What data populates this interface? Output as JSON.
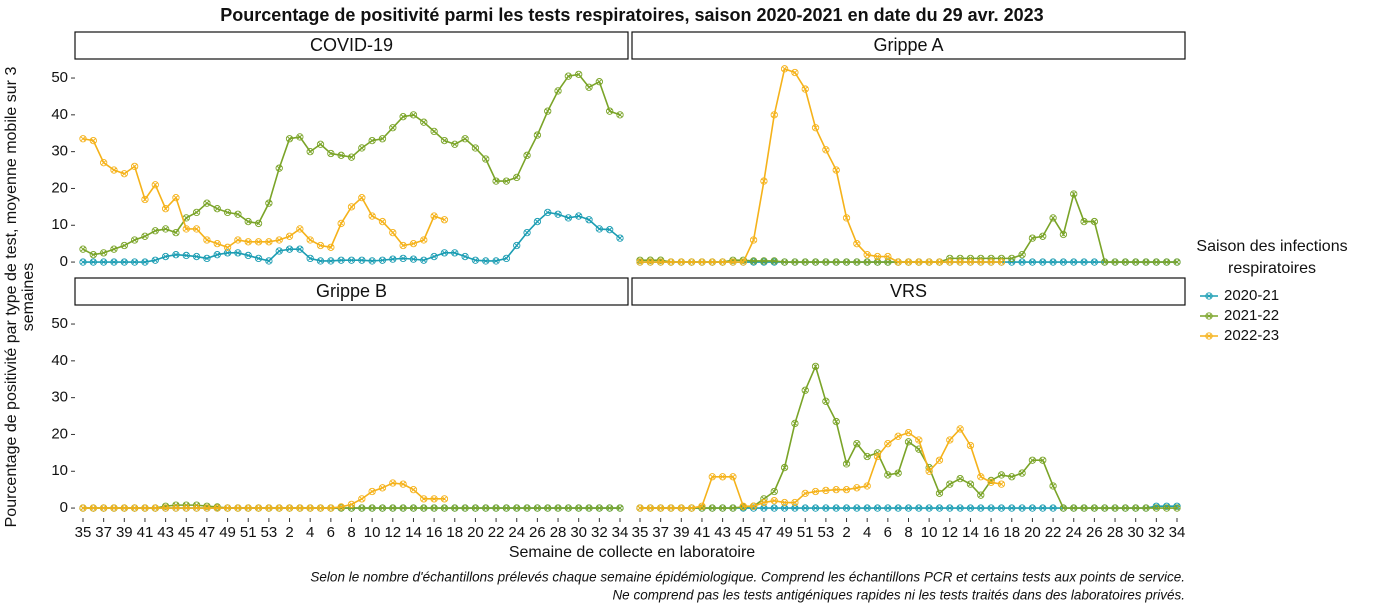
{
  "chart_data": {
    "type": "line",
    "title": "Pourcentage de positivité parmi les tests respiratoires, saison 2020-2021 en date du 29 avr. 2023",
    "x_label": "Semaine de collecte en laboratoire",
    "y_label": "Pourcentage de positivité par type de test, moyenne mobile sur 3 semaines",
    "footnote": [
      "Selon le nombre d'échantillons prélevés chaque semaine épidémiologique. Comprend les échantillons PCR et certains tests aux points de service.",
      "Ne comprend pas les tests antigéniques rapides ni les tests traités dans des laboratoires privés."
    ],
    "legend_title": "Saison des infections respiratoires",
    "legend_position": "right",
    "categories": [
      35,
      null,
      37,
      null,
      39,
      null,
      41,
      null,
      43,
      null,
      45,
      null,
      47,
      null,
      49,
      null,
      51,
      null,
      53,
      null,
      2,
      null,
      4,
      null,
      6,
      null,
      8,
      null,
      10,
      null,
      12,
      null,
      14,
      null,
      16,
      null,
      18,
      null,
      20,
      null,
      22,
      null,
      24,
      null,
      26,
      null,
      28,
      null,
      30,
      null,
      32,
      null,
      34
    ],
    "ylim": [
      -2.7,
      54.9
    ],
    "yticks": [
      0,
      10,
      20,
      30,
      40,
      50
    ],
    "series": [
      {
        "name": "2020-21",
        "color": "#1b9db3"
      },
      {
        "name": "2021-22",
        "color": "#7aa428"
      },
      {
        "name": "2022-23",
        "color": "#f5b21a"
      }
    ],
    "panels": [
      {
        "title": "COVID-19",
        "values": [
          [
            0,
            0,
            0,
            0,
            0,
            0,
            0,
            0.5,
            1.5,
            2,
            1.8,
            1.5,
            1,
            2,
            2.5,
            2.5,
            1.8,
            1,
            0.3,
            3,
            3.5,
            3.5,
            1,
            0.3,
            0.3,
            0.5,
            0.5,
            0.5,
            0.3,
            0.5,
            0.8,
            1,
            0.8,
            0.5,
            1.5,
            2.5,
            2.5,
            1.5,
            0.5,
            0.3,
            0.3,
            1,
            4.5,
            8,
            11,
            13.5,
            13,
            12,
            12.5,
            11.5,
            9,
            8.8,
            6.5
          ],
          [
            3.5,
            2,
            2.5,
            3.5,
            4.5,
            6,
            7,
            8.5,
            9,
            8,
            12,
            13.5,
            16,
            14.5,
            13.5,
            13,
            11,
            10.5,
            16,
            25.5,
            33.5,
            34,
            30,
            32,
            29.5,
            29,
            28.5,
            31,
            33,
            33.5,
            36.5,
            39.5,
            40,
            38,
            35.5,
            33,
            32,
            33.5,
            31,
            28,
            22,
            22,
            23,
            29,
            34.5,
            41,
            46.5,
            50.5,
            51,
            47.5,
            49,
            41,
            40
          ],
          [
            33.5,
            33,
            27,
            25,
            24,
            26,
            17,
            21,
            14.5,
            17.5,
            9,
            9,
            6,
            5,
            4,
            6,
            5.5,
            5.5,
            5.5,
            6,
            7,
            9,
            6,
            4.5,
            4,
            10.5,
            15,
            17.5,
            12.5,
            11,
            8,
            4.5,
            5,
            6,
            12.5,
            11.5,
            null,
            null,
            null,
            null,
            null,
            null,
            null,
            null,
            null,
            null,
            null,
            null,
            null,
            null,
            null,
            null,
            null
          ]
        ]
      },
      {
        "title": "Grippe A",
        "values": [
          [
            0,
            0,
            0,
            0,
            0,
            0,
            0,
            0,
            0,
            0,
            0,
            0,
            0,
            0,
            0,
            0,
            0,
            0,
            0,
            0,
            0,
            0,
            0,
            0,
            0,
            0,
            0,
            0,
            0,
            0,
            0,
            0,
            0,
            0,
            0,
            0,
            0,
            0,
            0,
            0,
            0,
            0,
            0,
            0,
            0,
            0,
            0,
            0,
            0,
            0,
            0,
            0,
            0
          ],
          [
            0.5,
            0.5,
            0.5,
            0,
            0,
            0,
            0,
            0,
            0,
            0.5,
            0.5,
            0.3,
            0.3,
            0.3,
            0,
            0,
            0,
            0,
            0,
            0,
            0,
            0,
            0,
            0,
            0,
            0,
            0,
            0,
            0,
            0,
            1,
            1,
            1,
            1,
            1,
            1,
            1,
            2,
            6.5,
            7,
            12,
            7.5,
            18.5,
            11,
            11,
            0,
            0,
            0,
            0,
            0,
            0,
            0,
            0
          ],
          [
            0,
            0,
            0,
            0,
            0,
            0,
            0,
            0,
            0,
            0,
            0,
            6,
            22,
            40,
            52.5,
            51.5,
            47,
            36.5,
            30.5,
            25,
            12,
            5,
            2,
            1.5,
            1.5,
            0,
            0,
            0,
            0,
            0,
            0,
            0,
            0,
            0,
            0,
            0,
            null,
            null,
            null,
            null,
            null,
            null,
            null,
            null,
            null,
            null,
            null,
            null,
            null,
            null,
            null,
            null,
            null
          ]
        ]
      },
      {
        "title": "Grippe B",
        "values": [
          [
            0,
            0,
            0,
            0,
            0,
            0,
            0,
            0,
            0,
            0,
            0,
            0,
            0,
            0,
            0,
            0,
            0,
            0,
            0,
            0,
            0,
            0,
            0,
            0,
            0,
            0,
            0,
            0,
            0,
            0,
            0,
            0,
            0,
            0,
            0,
            0,
            0,
            0,
            0,
            0,
            0,
            0,
            0,
            0,
            0,
            0,
            0,
            0,
            0,
            0,
            0,
            0,
            0
          ],
          [
            0,
            0,
            0,
            0,
            0,
            0,
            0,
            0,
            0.5,
            0.8,
            0.8,
            0.8,
            0.5,
            0.3,
            0,
            0,
            0,
            0,
            0,
            0,
            0,
            0,
            0,
            0,
            0,
            0,
            0,
            0,
            0,
            0,
            0,
            0,
            0,
            0,
            0,
            0,
            0,
            0,
            0,
            0,
            0,
            0,
            0,
            0,
            0,
            0,
            0,
            0,
            0,
            0,
            0,
            0,
            0
          ],
          [
            0,
            0,
            0,
            0,
            0,
            0,
            0,
            0,
            0,
            0,
            0,
            0,
            0,
            0,
            0,
            0,
            0,
            0,
            0,
            0,
            0,
            0,
            0,
            0,
            0,
            0.3,
            1,
            2.5,
            4.5,
            5.5,
            6.8,
            6.5,
            5,
            2.5,
            2.5,
            2.5,
            null,
            null,
            null,
            null,
            null,
            null,
            null,
            null,
            null,
            null,
            null,
            null,
            null,
            null,
            null,
            null,
            null
          ]
        ]
      },
      {
        "title": "VRS",
        "values": [
          [
            0,
            0,
            0,
            0,
            0,
            0,
            0,
            0,
            0,
            0,
            0,
            0,
            0,
            0,
            0,
            0,
            0,
            0,
            0,
            0,
            0,
            0,
            0,
            0,
            0,
            0,
            0,
            0,
            0,
            0,
            0,
            0,
            0,
            0,
            0,
            0,
            0,
            0,
            0,
            0,
            0,
            0,
            0,
            0,
            0,
            0,
            0,
            0,
            0,
            0,
            0.5,
            0.5,
            0.5
          ],
          [
            0,
            0,
            0,
            0,
            0,
            0,
            0,
            0,
            0,
            0,
            0.3,
            0.5,
            2.5,
            4.5,
            11,
            23,
            32,
            38.5,
            29,
            23.5,
            12,
            17.5,
            14,
            15,
            9,
            9.5,
            18,
            16,
            11,
            4,
            6.5,
            8,
            6.5,
            3.5,
            7.5,
            9,
            8.5,
            9.5,
            13,
            13,
            6,
            0,
            0,
            0,
            0,
            0,
            0,
            0,
            0,
            0,
            0,
            0,
            0
          ],
          [
            0,
            0,
            0,
            0,
            0,
            0,
            0.5,
            8.5,
            8.5,
            8.5,
            0.5,
            0.5,
            1.5,
            2,
            1.5,
            1.5,
            4,
            4.5,
            4.8,
            5,
            5,
            5.5,
            6,
            14,
            17.5,
            19.5,
            20.5,
            18.5,
            10,
            13,
            18.5,
            21.5,
            17,
            8.5,
            7,
            6.5,
            null,
            null,
            null,
            null,
            null,
            null,
            null,
            null,
            null,
            null,
            null,
            null,
            null,
            null,
            null,
            null,
            null
          ]
        ]
      }
    ]
  }
}
